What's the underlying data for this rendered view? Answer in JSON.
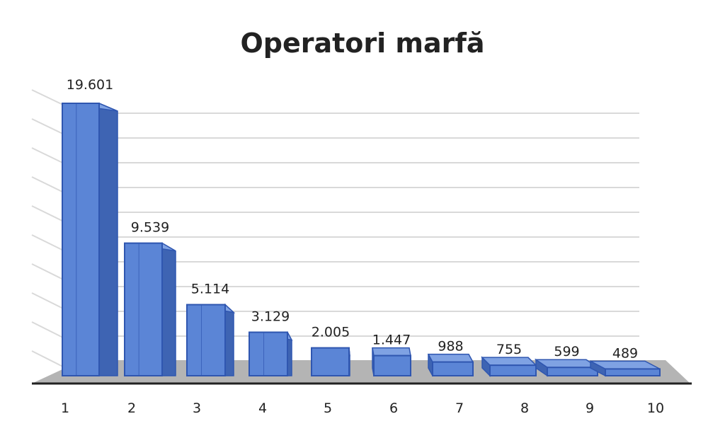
{
  "chart_data": {
    "type": "bar",
    "title": "Operatori marfă",
    "categories": [
      "1",
      "2",
      "3",
      "4",
      "5",
      "6",
      "7",
      "8",
      "9",
      "10"
    ],
    "values": [
      19601,
      9539,
      5114,
      3129,
      2005,
      1447,
      988,
      755,
      599,
      489
    ],
    "value_labels": [
      "19.601",
      "9.539",
      "5.114",
      "3.129",
      "2.005",
      "1.447",
      "988",
      "755",
      "599",
      "489"
    ],
    "xlabel": "",
    "ylabel": "",
    "ylim": [
      0,
      20000
    ],
    "grid": true,
    "legend": "none",
    "style": "3d",
    "colors": {
      "bar_front": "#5b85d6",
      "bar_top": "#7fa2e3",
      "bar_side": "#3e64b3",
      "bar_edge": "#2f56b0",
      "floor": "#b4b4b4",
      "grid": "#d9d9d9",
      "axis": "#222222"
    }
  }
}
